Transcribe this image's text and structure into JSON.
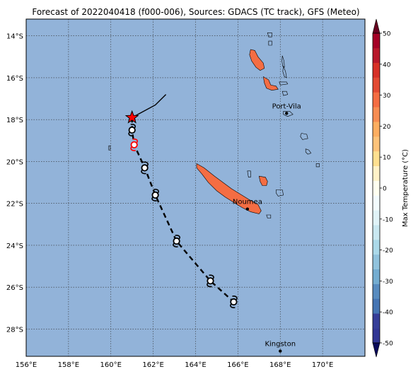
{
  "title": "Forecast of 2022040418 (f000-006), Sources: GDACS (TC track), GFS (Meteo)",
  "map": {
    "lon_range": [
      156,
      172
    ],
    "lat_range": [
      -29.3,
      -13.2
    ],
    "ocean_color": "#92b3d9",
    "land_color": "#f46d43",
    "grid": true,
    "lon_ticks": [
      {
        "value": 156,
        "label": "156°E"
      },
      {
        "value": 158,
        "label": "158°E"
      },
      {
        "value": 160,
        "label": "160°E"
      },
      {
        "value": 162,
        "label": "162°E"
      },
      {
        "value": 164,
        "label": "164°E"
      },
      {
        "value": 166,
        "label": "166°E"
      },
      {
        "value": 168,
        "label": "168°E"
      },
      {
        "value": 170,
        "label": "170°E"
      }
    ],
    "lat_ticks": [
      {
        "value": -14,
        "label": "14°S"
      },
      {
        "value": -16,
        "label": "16°S"
      },
      {
        "value": -18,
        "label": "18°S"
      },
      {
        "value": -20,
        "label": "20°S"
      },
      {
        "value": -22,
        "label": "22°S"
      },
      {
        "value": -24,
        "label": "24°S"
      },
      {
        "value": -26,
        "label": "26°S"
      },
      {
        "value": -28,
        "label": "28°S"
      }
    ]
  },
  "cities": [
    {
      "name": "Port-Vila",
      "lon": 168.3,
      "lat": -17.7
    },
    {
      "name": "Noumea",
      "lon": 166.45,
      "lat": -22.27
    },
    {
      "name": "Kingston",
      "lon": 168.0,
      "lat": -29.05
    }
  ],
  "past_track": [
    {
      "lon": 162.6,
      "lat": -16.8
    },
    {
      "lon": 162.1,
      "lat": -17.3
    },
    {
      "lon": 161.0,
      "lat": -17.9
    }
  ],
  "current_position": {
    "lon": 161.0,
    "lat": -17.9,
    "marker": "star-icon",
    "color": "#ff0000"
  },
  "forecast_track": [
    {
      "lon": 161.0,
      "lat": -17.9
    },
    {
      "lon": 161.0,
      "lat": -18.5
    },
    {
      "lon": 161.1,
      "lat": -19.2
    },
    {
      "lon": 161.6,
      "lat": -20.3
    },
    {
      "lon": 162.1,
      "lat": -21.6
    },
    {
      "lon": 163.1,
      "lat": -23.8
    },
    {
      "lon": 164.7,
      "lat": -25.7
    },
    {
      "lon": 165.8,
      "lat": -26.7
    }
  ],
  "forecast_symbols": [
    {
      "lon": 161.0,
      "lat": -18.5,
      "color": "#000000"
    },
    {
      "lon": 161.1,
      "lat": -19.2,
      "color": "#ff0000"
    },
    {
      "lon": 161.6,
      "lat": -20.3,
      "color": "#000000"
    },
    {
      "lon": 162.1,
      "lat": -21.6,
      "color": "#000000"
    },
    {
      "lon": 163.1,
      "lat": -23.8,
      "color": "#000000"
    },
    {
      "lon": 164.7,
      "lat": -25.7,
      "color": "#000000"
    },
    {
      "lon": 165.8,
      "lat": -26.7,
      "color": "#000000"
    }
  ],
  "islands": [
    {
      "name": "new-caledonia",
      "fill": "#f46d43",
      "points": [
        [
          164.05,
          -20.1
        ],
        [
          164.4,
          -20.3
        ],
        [
          164.9,
          -20.7
        ],
        [
          165.3,
          -21.0
        ],
        [
          165.7,
          -21.3
        ],
        [
          166.1,
          -21.55
        ],
        [
          166.5,
          -21.8
        ],
        [
          166.95,
          -22.05
        ],
        [
          167.1,
          -22.35
        ],
        [
          167.0,
          -22.5
        ],
        [
          166.6,
          -22.4
        ],
        [
          166.2,
          -22.2
        ],
        [
          165.8,
          -21.95
        ],
        [
          165.4,
          -21.7
        ],
        [
          165.0,
          -21.4
        ],
        [
          164.6,
          -21.0
        ],
        [
          164.3,
          -20.6
        ],
        [
          164.05,
          -20.3
        ]
      ]
    },
    {
      "name": "espiritu-santo",
      "fill": "#f46d43",
      "points": [
        [
          166.6,
          -14.65
        ],
        [
          166.8,
          -14.7
        ],
        [
          166.95,
          -15.0
        ],
        [
          167.2,
          -15.3
        ],
        [
          167.25,
          -15.55
        ],
        [
          167.05,
          -15.65
        ],
        [
          166.85,
          -15.5
        ],
        [
          166.65,
          -15.2
        ],
        [
          166.55,
          -14.9
        ]
      ]
    },
    {
      "name": "malekula",
      "fill": "#f46d43",
      "points": [
        [
          167.2,
          -15.95
        ],
        [
          167.45,
          -16.1
        ],
        [
          167.55,
          -16.35
        ],
        [
          167.8,
          -16.4
        ],
        [
          167.9,
          -16.55
        ],
        [
          167.6,
          -16.6
        ],
        [
          167.35,
          -16.5
        ],
        [
          167.25,
          -16.25
        ]
      ]
    },
    {
      "name": "lifou",
      "fill": "#f46d43",
      "points": [
        [
          167.0,
          -20.7
        ],
        [
          167.3,
          -20.75
        ],
        [
          167.4,
          -20.95
        ],
        [
          167.35,
          -21.15
        ],
        [
          167.15,
          -21.15
        ],
        [
          167.05,
          -20.95
        ]
      ]
    }
  ],
  "islands_outline": [
    {
      "name": "efate",
      "points": [
        [
          168.15,
          -17.6
        ],
        [
          168.45,
          -17.6
        ],
        [
          168.6,
          -17.75
        ],
        [
          168.35,
          -17.85
        ],
        [
          168.15,
          -17.75
        ]
      ]
    },
    {
      "name": "erromango",
      "points": [
        [
          169.0,
          -18.65
        ],
        [
          169.25,
          -18.7
        ],
        [
          169.3,
          -18.9
        ],
        [
          169.05,
          -18.95
        ],
        [
          168.95,
          -18.8
        ]
      ]
    },
    {
      "name": "tanna",
      "points": [
        [
          169.2,
          -19.4
        ],
        [
          169.35,
          -19.45
        ],
        [
          169.45,
          -19.6
        ],
        [
          169.3,
          -19.65
        ],
        [
          169.2,
          -19.55
        ]
      ]
    },
    {
      "name": "maewo",
      "points": [
        [
          168.1,
          -14.95
        ],
        [
          168.18,
          -15.2
        ],
        [
          168.2,
          -15.5
        ],
        [
          168.12,
          -15.45
        ],
        [
          168.08,
          -15.2
        ]
      ]
    },
    {
      "name": "pentecost",
      "points": [
        [
          168.15,
          -15.45
        ],
        [
          168.25,
          -15.7
        ],
        [
          168.3,
          -16.0
        ],
        [
          168.2,
          -15.95
        ],
        [
          168.12,
          -15.7
        ]
      ]
    },
    {
      "name": "ambrym",
      "points": [
        [
          167.95,
          -16.2
        ],
        [
          168.3,
          -16.2
        ],
        [
          168.35,
          -16.3
        ],
        [
          168.0,
          -16.35
        ]
      ]
    },
    {
      "name": "epi",
      "points": [
        [
          168.1,
          -16.65
        ],
        [
          168.3,
          -16.65
        ],
        [
          168.35,
          -16.8
        ],
        [
          168.15,
          -16.85
        ]
      ]
    },
    {
      "name": "ouvea",
      "points": [
        [
          166.45,
          -20.45
        ],
        [
          166.6,
          -20.45
        ],
        [
          166.6,
          -20.75
        ],
        [
          166.5,
          -20.75
        ]
      ]
    },
    {
      "name": "mare",
      "points": [
        [
          167.8,
          -21.35
        ],
        [
          168.1,
          -21.35
        ],
        [
          168.15,
          -21.6
        ],
        [
          167.9,
          -21.65
        ],
        [
          167.8,
          -21.5
        ]
      ]
    },
    {
      "name": "isle-of-pines",
      "points": [
        [
          167.35,
          -22.55
        ],
        [
          167.55,
          -22.55
        ],
        [
          167.55,
          -22.7
        ],
        [
          167.4,
          -22.7
        ]
      ]
    },
    {
      "name": "banks-1",
      "points": [
        [
          167.4,
          -13.85
        ],
        [
          167.6,
          -13.85
        ],
        [
          167.6,
          -14.05
        ],
        [
          167.45,
          -14.05
        ]
      ]
    },
    {
      "name": "banks-2",
      "points": [
        [
          167.45,
          -14.25
        ],
        [
          167.6,
          -14.25
        ],
        [
          167.6,
          -14.45
        ],
        [
          167.45,
          -14.45
        ]
      ]
    },
    {
      "name": "aneityum",
      "points": [
        [
          169.7,
          -20.1
        ],
        [
          169.85,
          -20.1
        ],
        [
          169.85,
          -20.25
        ],
        [
          169.7,
          -20.25
        ]
      ]
    },
    {
      "name": "chesterfield",
      "points": [
        [
          159.9,
          -19.25
        ],
        [
          159.97,
          -19.25
        ],
        [
          159.97,
          -19.45
        ],
        [
          159.9,
          -19.45
        ]
      ]
    }
  ],
  "colorbar": {
    "label": "Max Temperature (°C)",
    "ticks": [
      50,
      40,
      30,
      20,
      10,
      0,
      -10,
      -20,
      -30,
      -40,
      -50
    ],
    "min": -50,
    "max": 50,
    "colors": [
      "#313695",
      "#353e99",
      "#4575b4",
      "#588cc0",
      "#74add1",
      "#91c3dd",
      "#abd9e9",
      "#c9e8f1",
      "#e0f3f8",
      "#f3fbfd",
      "#fffff0",
      "#fff2c8",
      "#fee090",
      "#fdc37a",
      "#fdae61",
      "#f88d52",
      "#f46d43",
      "#e34a33",
      "#d73027",
      "#b8182b",
      "#a50026"
    ]
  }
}
